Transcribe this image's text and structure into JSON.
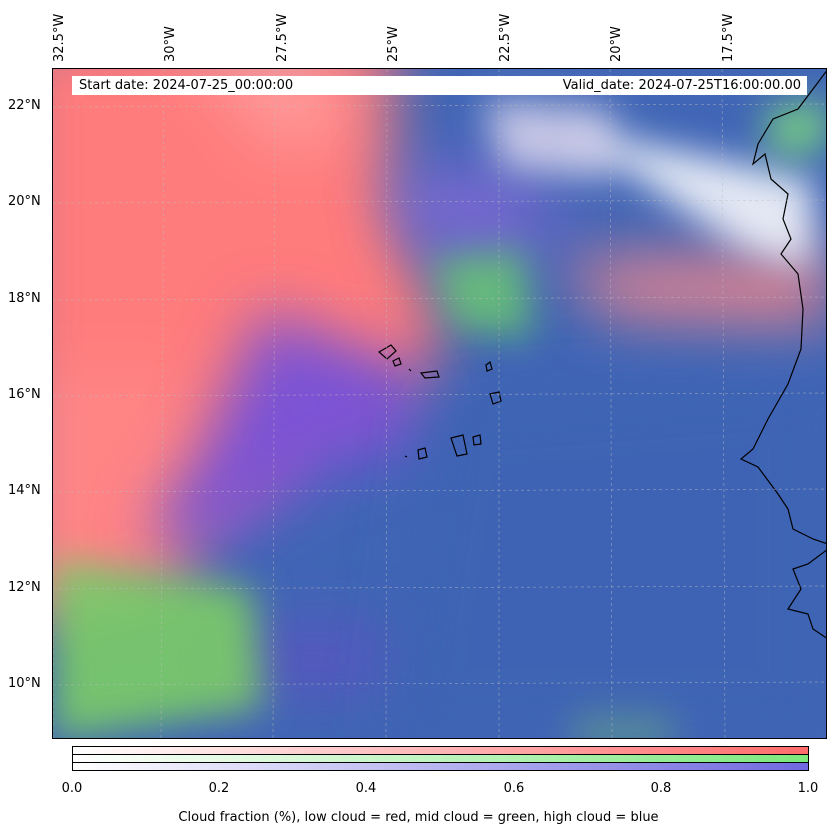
{
  "map": {
    "lon_labels": [
      "32.5°W",
      "30°W",
      "27.5°W",
      "25°W",
      "22.5°W",
      "20°W",
      "17.5°W"
    ],
    "lat_labels": [
      "22°N",
      "20°N",
      "18°N",
      "16°N",
      "14°N",
      "12°N",
      "10°N"
    ],
    "start_date": "Start date: 2024-07-25_00:00:00",
    "valid_date": "Valid_date: 2024-07-25T16:00:00.00",
    "regions": [
      {
        "name": "low-cloud-west",
        "color": "#ff7a7a"
      },
      {
        "name": "mid-cloud-southwest",
        "color": "#7acc6a"
      },
      {
        "name": "high-cloud-center",
        "color": "#7a55d6"
      },
      {
        "name": "clear-ocean-east",
        "color": "#3d66b8"
      },
      {
        "name": "land-africa",
        "color": "#f3f3f7"
      }
    ]
  },
  "colorbar": {
    "rows": [
      {
        "name": "low cloud",
        "color": "#ff6b6b"
      },
      {
        "name": "mid cloud",
        "color": "#7ce87c"
      },
      {
        "name": "high cloud",
        "color": "#7068e0"
      }
    ],
    "ticks": [
      "0.0",
      "0.2",
      "0.4",
      "0.6",
      "0.8",
      "1.0"
    ],
    "caption": "Cloud fraction (%), low cloud = red, mid cloud = green, high cloud = blue"
  }
}
